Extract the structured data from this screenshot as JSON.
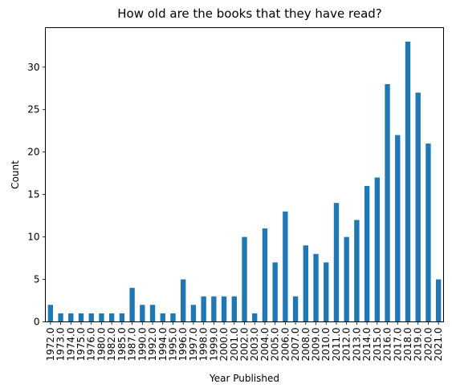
{
  "chart_data": {
    "type": "bar",
    "title": "How old are the books that they have read?",
    "xlabel": "Year Published",
    "ylabel": "Count",
    "categories": [
      "1972.0",
      "1973.0",
      "1974.0",
      "1975.0",
      "1976.0",
      "1980.0",
      "1982.0",
      "1985.0",
      "1987.0",
      "1990.0",
      "1992.0",
      "1994.0",
      "1995.0",
      "1996.0",
      "1997.0",
      "1998.0",
      "1999.0",
      "2000.0",
      "2001.0",
      "2002.0",
      "2003.0",
      "2004.0",
      "2005.0",
      "2006.0",
      "2007.0",
      "2008.0",
      "2009.0",
      "2010.0",
      "2011.0",
      "2012.0",
      "2013.0",
      "2014.0",
      "2015.0",
      "2016.0",
      "2017.0",
      "2018.0",
      "2019.0",
      "2020.0",
      "2021.0"
    ],
    "values": [
      2,
      1,
      1,
      1,
      1,
      1,
      1,
      1,
      4,
      2,
      2,
      1,
      1,
      5,
      2,
      3,
      3,
      3,
      3,
      10,
      1,
      11,
      7,
      13,
      3,
      9,
      8,
      7,
      14,
      10,
      12,
      16,
      17,
      28,
      22,
      33,
      27,
      21,
      5
    ],
    "ylim": [
      0,
      34.65
    ],
    "yticks": [
      0,
      5,
      10,
      15,
      20,
      25,
      30
    ],
    "bar_color": "#1f77b4",
    "grid": false,
    "legend": "none"
  }
}
